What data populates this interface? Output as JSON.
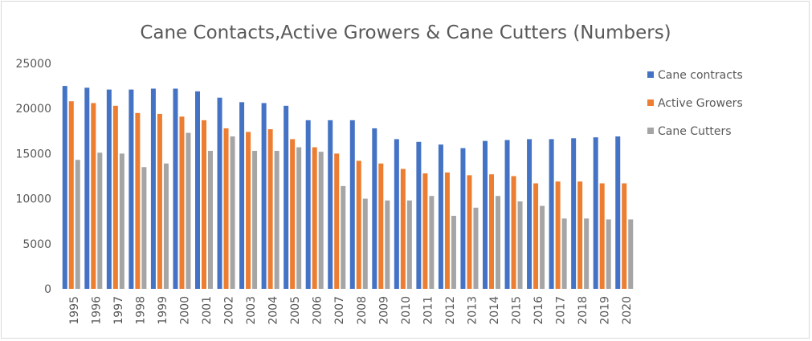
{
  "chart_data": {
    "type": "bar",
    "title": "Cane Contacts,Active Growers & Cane Cutters (Numbers)",
    "xlabel": "",
    "ylabel": "",
    "ylim": [
      0,
      25000
    ],
    "yticks": [
      "0",
      "5000",
      "10000",
      "15000",
      "20000",
      "25000"
    ],
    "grid": false,
    "legend_position": "right",
    "categories": [
      "1995",
      "1996",
      "1997",
      "1998",
      "1999",
      "2000",
      "2001",
      "2002",
      "2003",
      "2004",
      "2005",
      "2006",
      "2007",
      "2008",
      "2009",
      "2010",
      "2011",
      "2012",
      "2013",
      "2014",
      "2015",
      "2016",
      "2017",
      "2018",
      "2019",
      "2020"
    ],
    "series": [
      {
        "name": "Cane contracts",
        "color": "#4472c4",
        "values": [
          22500,
          22300,
          22100,
          22100,
          22200,
          22200,
          21900,
          21200,
          20700,
          20600,
          20300,
          18700,
          18700,
          18700,
          17800,
          16600,
          16300,
          16000,
          15600,
          16400,
          16500,
          16600,
          16600,
          16700,
          16800,
          16900
        ]
      },
      {
        "name": "Active Growers",
        "color": "#ed7d31",
        "values": [
          20800,
          20600,
          20300,
          19500,
          19400,
          19100,
          18700,
          17800,
          17400,
          17700,
          16600,
          15700,
          15000,
          14200,
          13900,
          13300,
          12800,
          12900,
          12600,
          12700,
          12500,
          11700,
          11900,
          11900,
          11700,
          11700
        ]
      },
      {
        "name": "Cane Cutters",
        "color": "#a5a5a5",
        "values": [
          14300,
          15100,
          15000,
          13500,
          13900,
          17300,
          15300,
          16900,
          15300,
          15300,
          15700,
          15200,
          11400,
          10000,
          9800,
          9800,
          10300,
          8100,
          9000,
          10300,
          9700,
          9200,
          7800,
          7800,
          7700,
          7700
        ]
      }
    ]
  }
}
